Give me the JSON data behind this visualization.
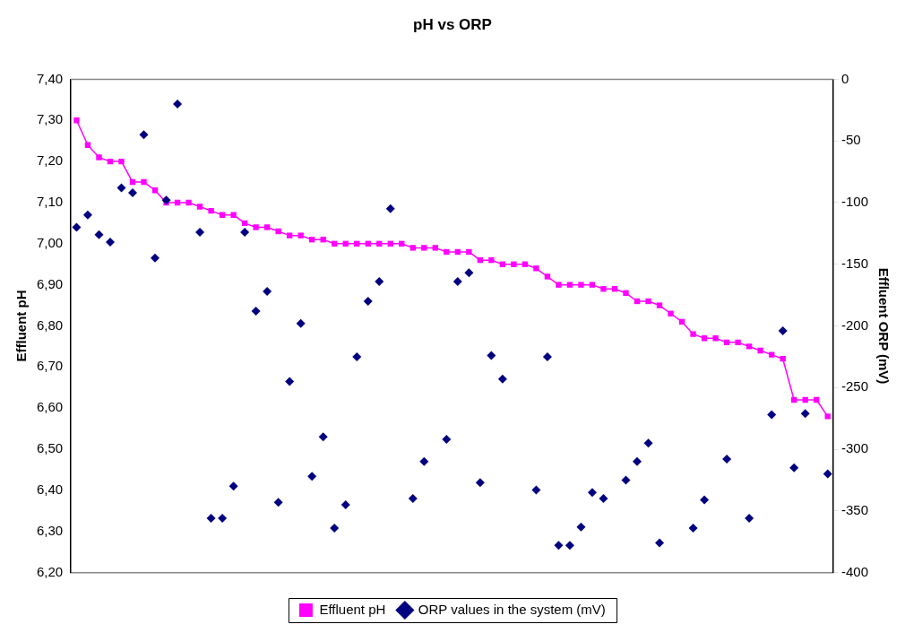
{
  "chart_data": {
    "type": "line",
    "title": "pH vs ORP",
    "ylabel": "Effluent pH",
    "y2label": "Effluent ORP (mV)",
    "categories": [
      null,
      null,
      null,
      null,
      null,
      null,
      null,
      null,
      null,
      null,
      null,
      null,
      null,
      null,
      null,
      null,
      null,
      null,
      null,
      null,
      null,
      null,
      null,
      null,
      null,
      null,
      null,
      null,
      null,
      null,
      null,
      null,
      null,
      null,
      null,
      null,
      null,
      null,
      null,
      null,
      null,
      null,
      null,
      null,
      null,
      null,
      null,
      null,
      null,
      null,
      null,
      null,
      null,
      null,
      null,
      null,
      null,
      null,
      null,
      null,
      null,
      null,
      null,
      null,
      null,
      null,
      null,
      null
    ],
    "series": [
      {
        "name": "Effluent pH",
        "marker": "square",
        "color": "#ff00ff",
        "values": [
          7.3,
          7.24,
          7.21,
          7.2,
          7.2,
          7.15,
          7.15,
          7.13,
          7.1,
          7.1,
          7.1,
          7.09,
          7.08,
          7.07,
          7.07,
          7.05,
          7.04,
          7.04,
          7.03,
          7.02,
          7.02,
          7.01,
          7.01,
          7.0,
          7.0,
          7.0,
          7.0,
          7.0,
          7.0,
          7.0,
          6.99,
          6.99,
          6.99,
          6.98,
          6.98,
          6.98,
          6.96,
          6.96,
          6.95,
          6.95,
          6.95,
          6.94,
          6.92,
          6.9,
          6.9,
          6.9,
          6.9,
          6.89,
          6.89,
          6.88,
          6.86,
          6.86,
          6.85,
          6.83,
          6.81,
          6.78,
          6.77,
          6.77,
          6.76,
          6.76,
          6.75,
          6.74,
          6.73,
          6.72,
          6.62,
          6.62,
          6.62,
          6.58
        ]
      },
      {
        "name": "ORP values in the system (mV)",
        "type": "scatter",
        "marker": "diamond",
        "axis": "y2",
        "color": "#000080",
        "values": [
          -120,
          -110,
          -126,
          -132,
          -88,
          -92,
          -45,
          -145,
          -98,
          -20,
          null,
          -124,
          -356,
          -356,
          -330,
          -124,
          -188,
          -172,
          -343,
          -245,
          -198,
          -322,
          -290,
          -364,
          -345,
          -225,
          -180,
          -164,
          -105,
          null,
          -340,
          -310,
          null,
          -292,
          -164,
          -157,
          -327,
          -224,
          -243,
          null,
          null,
          -333,
          -225,
          -378,
          -378,
          -363,
          -335,
          -340,
          null,
          -325,
          -310,
          -295,
          -376,
          null,
          null,
          -364,
          -341,
          null,
          -308,
          null,
          -356,
          null,
          -272,
          -204,
          -315,
          -271,
          null,
          -320
        ]
      }
    ],
    "ylim": [
      6.2,
      7.4
    ],
    "yticks": [
      {
        "value": 6.2,
        "label": "6,20"
      },
      {
        "value": 6.3,
        "label": "6,30"
      },
      {
        "value": 6.4,
        "label": "6,40"
      },
      {
        "value": 6.5,
        "label": "6,50"
      },
      {
        "value": 6.6,
        "label": "6,60"
      },
      {
        "value": 6.7,
        "label": "6,70"
      },
      {
        "value": 6.8,
        "label": "6,80"
      },
      {
        "value": 6.9,
        "label": "6,90"
      },
      {
        "value": 7.0,
        "label": "7,00"
      },
      {
        "value": 7.1,
        "label": "7,10"
      },
      {
        "value": 7.2,
        "label": "7,20"
      },
      {
        "value": 7.3,
        "label": "7,30"
      },
      {
        "value": 7.4,
        "label": "7,40"
      }
    ],
    "y2lim": [
      -400,
      0
    ],
    "y2ticks": [
      -400,
      -350,
      -300,
      -250,
      -200,
      -150,
      -100,
      -50,
      0
    ],
    "grid": false,
    "legend": "bottom"
  }
}
